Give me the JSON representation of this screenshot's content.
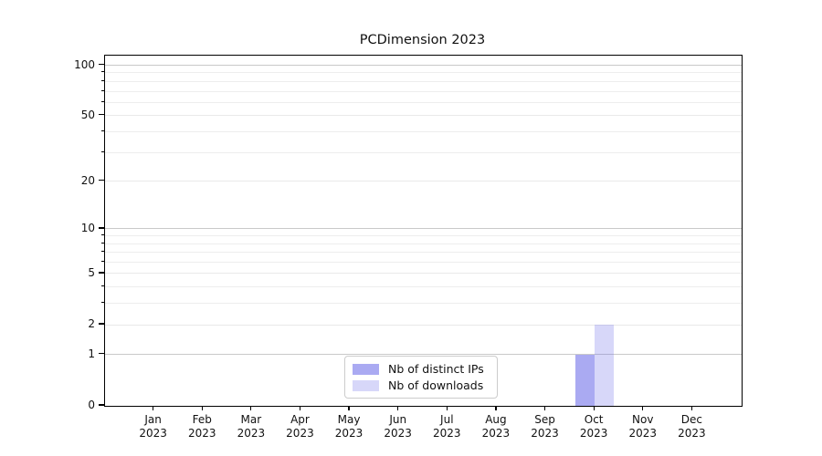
{
  "figure": {
    "background": "#ffffff",
    "axis_color": "#000000",
    "grid_major_color": "#c9c9c9",
    "grid_labeled_color": "#e9e9e9",
    "grid_minor_color": "#ededed",
    "legend_border_color": "#cccccc"
  },
  "chart_data": {
    "type": "bar",
    "title": "PCDimension 2023",
    "categories": [
      "Jan",
      "Feb",
      "Mar",
      "Apr",
      "May",
      "Jun",
      "Jul",
      "Aug",
      "Sep",
      "Oct",
      "Nov",
      "Dec"
    ],
    "category_year": "2023",
    "series": [
      {
        "name": "Nb of distinct IPs",
        "color": "#7171ea",
        "alpha": 0.6,
        "values": [
          0,
          0,
          0,
          0,
          0,
          0,
          0,
          0,
          0,
          1,
          0,
          0
        ]
      },
      {
        "name": "Nb of downloads",
        "color": "#7171ea",
        "alpha": 0.28,
        "values": [
          0,
          0,
          0,
          0,
          0,
          0,
          0,
          0,
          0,
          2,
          0,
          0
        ]
      }
    ],
    "xlabel": "",
    "ylabel": "",
    "yscale": "symlog",
    "ylim": [
      0,
      114
    ],
    "y_ticks": [
      0,
      1,
      2,
      5,
      10,
      20,
      50,
      100
    ],
    "y_major_grid_values": [
      1,
      10,
      100
    ],
    "y_minor_grid_values": [
      3,
      4,
      6,
      7,
      8,
      9,
      30,
      40,
      60,
      70,
      80,
      90
    ],
    "grid": "on",
    "legend_position": "inside-bottom-center"
  }
}
